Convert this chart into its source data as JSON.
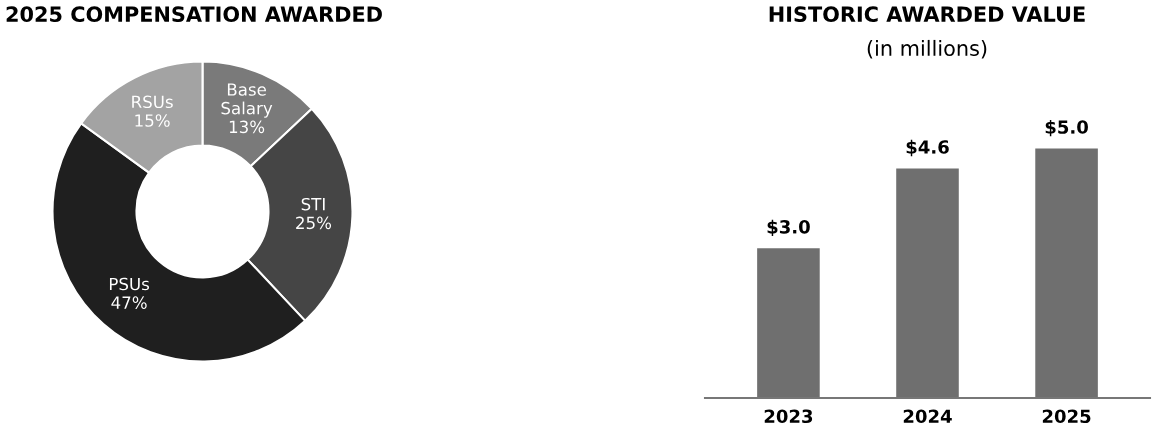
{
  "chart_data": [
    {
      "type": "donut",
      "title": "2025 COMPENSATION AWARDED",
      "categories": [
        "Base Salary",
        "STI",
        "PSUs",
        "RSUs"
      ],
      "values": [
        13,
        25,
        47,
        15
      ],
      "colors": [
        "#7a7a7a",
        "#454545",
        "#1f1f1f",
        "#a3a3a3"
      ],
      "value_labels": [
        "13%",
        "25%",
        "47%",
        "15%"
      ]
    },
    {
      "type": "bar",
      "title": "HISTORIC AWARDED VALUE",
      "subtitle": "(in millions)",
      "categories": [
        "2023",
        "2024",
        "2025"
      ],
      "values": [
        3.0,
        4.6,
        5.0
      ],
      "color": "#6f6f6f",
      "value_labels": [
        "$3.0",
        "$4.6",
        "$5.0"
      ]
    }
  ]
}
